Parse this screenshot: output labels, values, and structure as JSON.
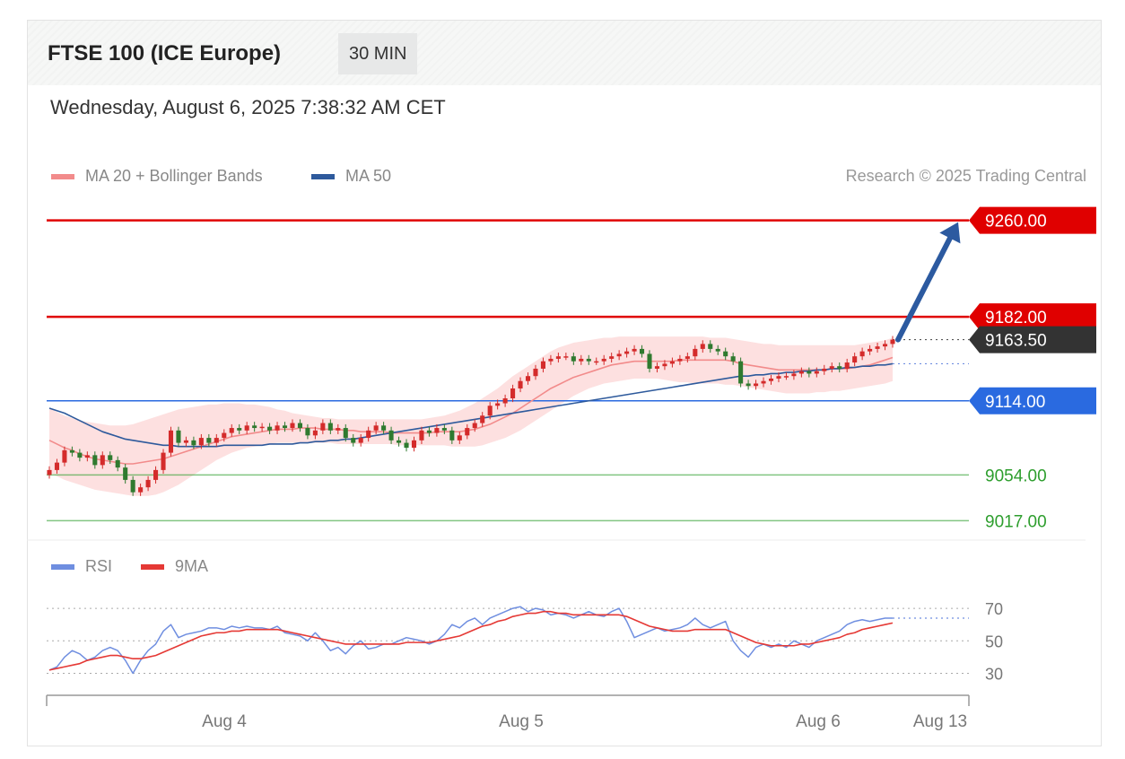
{
  "header": {
    "title": "FTSE 100 (ICE Europe)",
    "timeframe": "30 MIN",
    "datetime": "Wednesday, August 6, 2025 7:38:32 AM CET"
  },
  "legend": {
    "ma20": {
      "label": "MA 20 + Bollinger Bands",
      "color": "#f28b8b"
    },
    "ma50": {
      "label": "MA 50",
      "color": "#2e5a9c"
    }
  },
  "credit": "Research © 2025 Trading Central",
  "rsi_legend": {
    "rsi": {
      "label": "RSI",
      "color": "#6f8ee0"
    },
    "ma9": {
      "label": "9MA",
      "color": "#e53935"
    }
  },
  "chart_data": [
    {
      "type": "candlestick",
      "ylim": [
        9010,
        9275
      ],
      "x_ticks": [
        "Aug 4",
        "Aug 5",
        "Aug 6",
        "Aug 13"
      ],
      "levels": [
        {
          "value": 9260.0,
          "label": "9260.00",
          "kind": "resistance",
          "color": "#e00000"
        },
        {
          "value": 9182.0,
          "label": "9182.00",
          "kind": "resistance",
          "color": "#e00000"
        },
        {
          "value": 9163.5,
          "label": "9163.50",
          "kind": "last",
          "color": "#333333"
        },
        {
          "value": 9114.0,
          "label": "9114.00",
          "kind": "pivot",
          "color": "#2a6ae0"
        },
        {
          "value": 9054.0,
          "label": "9054.00",
          "kind": "support",
          "color": "#2e9e2e"
        },
        {
          "value": 9017.0,
          "label": "9017.00",
          "kind": "support",
          "color": "#2e9e2e"
        }
      ],
      "close": [
        9058,
        9064,
        9074,
        9072,
        9068,
        9070,
        9062,
        9070,
        9066,
        9060,
        9050,
        9040,
        9044,
        9050,
        9058,
        9072,
        9090,
        9080,
        9082,
        9078,
        9084,
        9080,
        9084,
        9088,
        9092,
        9090,
        9094,
        9092,
        9093,
        9090,
        9094,
        9092,
        9096,
        9092,
        9086,
        9090,
        9096,
        9090,
        9092,
        9084,
        9080,
        9084,
        9090,
        9094,
        9090,
        9082,
        9080,
        9076,
        9082,
        9090,
        9088,
        9092,
        9090,
        9082,
        9086,
        9092,
        9096,
        9102,
        9110,
        9112,
        9116,
        9124,
        9130,
        9134,
        9140,
        9146,
        9148,
        9150,
        9150,
        9146,
        9148,
        9146,
        9146,
        9148,
        9150,
        9152,
        9154,
        9156,
        9152,
        9140,
        9142,
        9144,
        9146,
        9148,
        9150,
        9156,
        9160,
        9156,
        9154,
        9150,
        9146,
        9128,
        9126,
        9128,
        9130,
        9132,
        9134,
        9134,
        9136,
        9138,
        9136,
        9138,
        9140,
        9142,
        9140,
        9145,
        9150,
        9154,
        9156,
        9158,
        9160,
        9163.5
      ],
      "ma20": [
        9082,
        9079,
        9076,
        9074,
        9071,
        9069,
        9067,
        9066,
        9065,
        9064,
        9063,
        9063,
        9064,
        9065,
        9066,
        9067,
        9069,
        9071,
        9073,
        9075,
        9077,
        9079,
        9081,
        9083,
        9085,
        9086,
        9087,
        9088,
        9089,
        9090,
        9091,
        9091,
        9091,
        9092,
        9092,
        9092,
        9091,
        9091,
        9091,
        9090,
        9090,
        9089,
        9089,
        9089,
        9089,
        9088,
        9088,
        9088,
        9088,
        9088,
        9088,
        9089,
        9089,
        9089,
        9089,
        9090,
        9091,
        9093,
        9095,
        9098,
        9101,
        9104,
        9108,
        9112,
        9116,
        9120,
        9124,
        9127,
        9130,
        9133,
        9135,
        9137,
        9139,
        9141,
        9143,
        9144,
        9145,
        9146,
        9146,
        9146,
        9146,
        9146,
        9146,
        9147,
        9147,
        9147,
        9147,
        9147,
        9147,
        9147,
        9146,
        9144,
        9143,
        9142,
        9141,
        9140,
        9139,
        9139,
        9139,
        9139,
        9139,
        9139,
        9139,
        9140,
        9140,
        9140,
        9141,
        9142,
        9143,
        9145,
        9147,
        9149
      ],
      "bb_upper": [
        9108,
        9105,
        9102,
        9100,
        9098,
        9097,
        9096,
        9095,
        9094,
        9094,
        9094,
        9095,
        9097,
        9099,
        9101,
        9103,
        9105,
        9107,
        9108,
        9109,
        9110,
        9111,
        9111,
        9112,
        9112,
        9112,
        9111,
        9111,
        9110,
        9109,
        9107,
        9106,
        9104,
        9103,
        9102,
        9101,
        9100,
        9100,
        9099,
        9099,
        9099,
        9099,
        9099,
        9099,
        9099,
        9099,
        9099,
        9099,
        9099,
        9099,
        9100,
        9101,
        9102,
        9104,
        9106,
        9109,
        9112,
        9116,
        9120,
        9124,
        9129,
        9134,
        9138,
        9142,
        9146,
        9150,
        9154,
        9157,
        9159,
        9161,
        9162,
        9163,
        9164,
        9165,
        9165,
        9166,
        9166,
        9166,
        9166,
        9166,
        9166,
        9166,
        9166,
        9166,
        9166,
        9166,
        9166,
        9165,
        9165,
        9165,
        9164,
        9163,
        9162,
        9161,
        9160,
        9160,
        9159,
        9159,
        9159,
        9159,
        9159,
        9159,
        9159,
        9159,
        9159,
        9159,
        9159,
        9160,
        9161,
        9162,
        9163,
        9165
      ],
      "bb_lower": [
        9056,
        9053,
        9050,
        9048,
        9046,
        9044,
        9042,
        9041,
        9040,
        9039,
        9038,
        9037,
        9037,
        9037,
        9038,
        9040,
        9043,
        9046,
        9050,
        9054,
        9058,
        9062,
        9066,
        9069,
        9072,
        9074,
        9076,
        9077,
        9078,
        9079,
        9080,
        9080,
        9080,
        9080,
        9080,
        9080,
        9080,
        9080,
        9079,
        9079,
        9079,
        9079,
        9079,
        9079,
        9079,
        9079,
        9078,
        9078,
        9078,
        9078,
        9078,
        9078,
        9078,
        9077,
        9077,
        9077,
        9077,
        9078,
        9080,
        9082,
        9084,
        9087,
        9090,
        9094,
        9098,
        9102,
        9106,
        9110,
        9114,
        9118,
        9121,
        9124,
        9126,
        9128,
        9129,
        9130,
        9131,
        9132,
        9132,
        9132,
        9132,
        9131,
        9130,
        9129,
        9129,
        9128,
        9128,
        9128,
        9128,
        9127,
        9127,
        9126,
        9125,
        9124,
        9123,
        9122,
        9121,
        9120,
        9120,
        9120,
        9120,
        9121,
        9121,
        9122,
        9122,
        9123,
        9124,
        9125,
        9126,
        9127,
        9128,
        9130
      ],
      "ma50": [
        9108,
        9106,
        9104,
        9101,
        9098,
        9095,
        9092,
        9089,
        9087,
        9085,
        9083,
        9082,
        9081,
        9080,
        9079,
        9078,
        9078,
        9077,
        9077,
        9077,
        9077,
        9077,
        9077,
        9078,
        9078,
        9078,
        9078,
        9078,
        9078,
        9079,
        9079,
        9079,
        9079,
        9080,
        9080,
        9081,
        9081,
        9082,
        9082,
        9083,
        9083,
        9084,
        9085,
        9086,
        9087,
        9088,
        9089,
        9090,
        9091,
        9092,
        9093,
        9094,
        9095,
        9096,
        9097,
        9098,
        9099,
        9100,
        9101,
        9102,
        9103,
        9104,
        9105,
        9106,
        9107,
        9108,
        9109,
        9110,
        9111,
        9112,
        9113,
        9114,
        9115,
        9116,
        9117,
        9118,
        9119,
        9120,
        9121,
        9122,
        9123,
        9124,
        9125,
        9126,
        9127,
        9128,
        9129,
        9130,
        9131,
        9132,
        9133,
        9134,
        9134,
        9135,
        9135,
        9136,
        9136,
        9137,
        9137,
        9138,
        9138,
        9139,
        9139,
        9140,
        9140,
        9141,
        9141,
        9142,
        9142,
        9143,
        9143,
        9144
      ],
      "arrow": {
        "from_value": 9163.5,
        "to_value": 9260.0
      }
    },
    {
      "type": "line",
      "ylim": [
        22,
        80
      ],
      "y_ticks": [
        30,
        50,
        70
      ],
      "series": [
        {
          "name": "RSI",
          "color": "#6f8ee0",
          "values": [
            32,
            34,
            40,
            44,
            42,
            38,
            40,
            44,
            46,
            44,
            38,
            30,
            38,
            44,
            48,
            56,
            60,
            52,
            54,
            55,
            56,
            58,
            58,
            57,
            59,
            58,
            59,
            58,
            58,
            57,
            59,
            55,
            54,
            53,
            50,
            55,
            50,
            44,
            46,
            42,
            47,
            50,
            45,
            46,
            48,
            48,
            50,
            52,
            51,
            50,
            48,
            50,
            54,
            60,
            58,
            62,
            64,
            60,
            64,
            66,
            68,
            70,
            71,
            68,
            70,
            69,
            66,
            67,
            66,
            64,
            66,
            68,
            66,
            65,
            68,
            70,
            62,
            52,
            54,
            56,
            58,
            56,
            57,
            58,
            60,
            64,
            60,
            58,
            60,
            62,
            50,
            44,
            40,
            46,
            48,
            46,
            48,
            46,
            50,
            48,
            46,
            50,
            52,
            54,
            56,
            60,
            62,
            63,
            62,
            63,
            64,
            64
          ]
        },
        {
          "name": "9MA",
          "color": "#e53935",
          "values": [
            32,
            33,
            34,
            35,
            36,
            38,
            39,
            40,
            41,
            41,
            40,
            39,
            39,
            40,
            41,
            43,
            45,
            47,
            49,
            51,
            53,
            54,
            55,
            55,
            56,
            56,
            57,
            57,
            57,
            57,
            57,
            56,
            55,
            54,
            53,
            52,
            51,
            50,
            49,
            48,
            48,
            48,
            48,
            48,
            48,
            48,
            48,
            49,
            49,
            49,
            49,
            50,
            51,
            52,
            53,
            55,
            57,
            59,
            60,
            62,
            63,
            65,
            66,
            67,
            67,
            68,
            68,
            67,
            67,
            66,
            66,
            66,
            66,
            66,
            66,
            66,
            65,
            63,
            61,
            59,
            58,
            57,
            56,
            56,
            56,
            57,
            57,
            57,
            57,
            57,
            55,
            53,
            51,
            49,
            48,
            47,
            47,
            47,
            47,
            48,
            48,
            49,
            50,
            51,
            52,
            54,
            55,
            57,
            58,
            59,
            60,
            61
          ]
        }
      ]
    }
  ]
}
